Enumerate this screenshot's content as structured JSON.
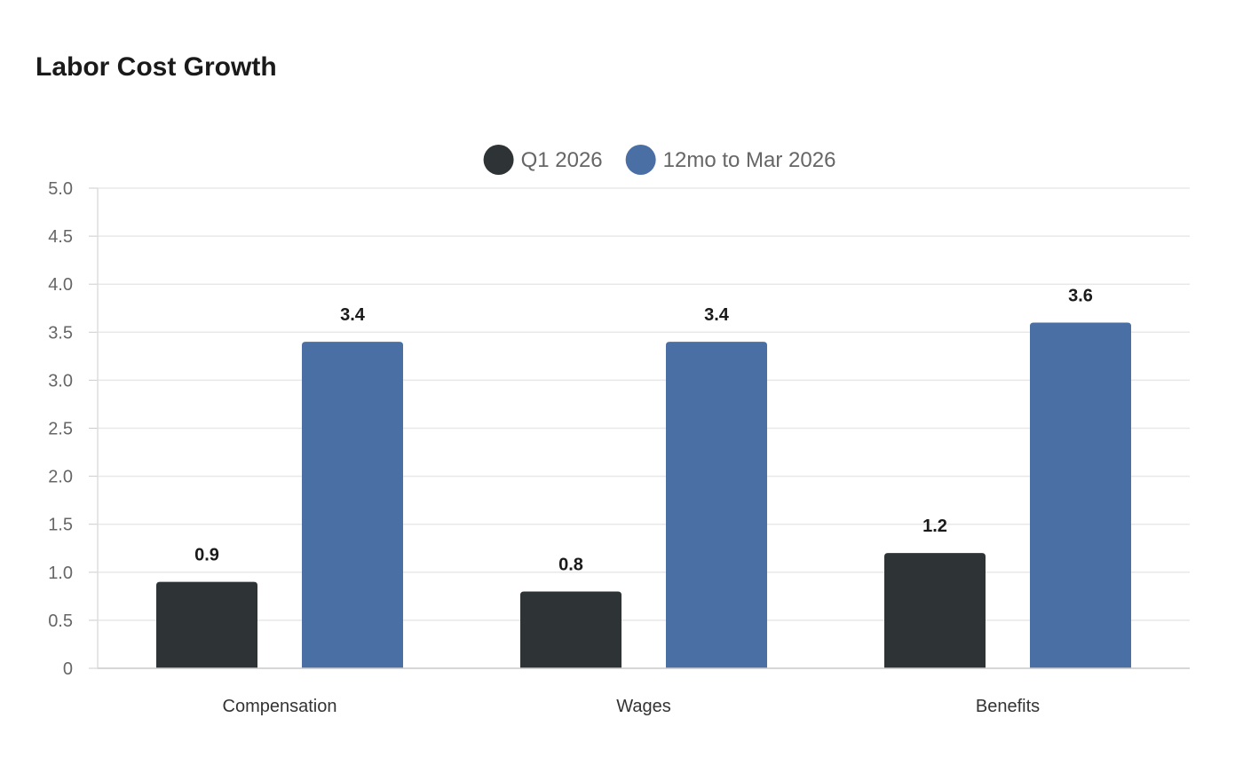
{
  "chart_data": {
    "type": "bar",
    "title": "Labor Cost Growth",
    "xlabel": "",
    "ylabel": "",
    "ylim": [
      0,
      5.0
    ],
    "yticks": [
      "0",
      "0.5",
      "1.0",
      "1.5",
      "2.0",
      "2.5",
      "3.0",
      "3.5",
      "4.0",
      "4.5",
      "5.0"
    ],
    "categories": [
      "Compensation",
      "Wages",
      "Benefits"
    ],
    "series": [
      {
        "name": "Q1 2026",
        "color": "#2e3436",
        "values": [
          0.9,
          0.8,
          1.2
        ]
      },
      {
        "name": "12mo to Mar 2026",
        "color": "#4a6fa5",
        "values": [
          3.4,
          3.4,
          3.6
        ]
      }
    ],
    "grid": true,
    "legend": "top-center",
    "data_labels": true
  }
}
